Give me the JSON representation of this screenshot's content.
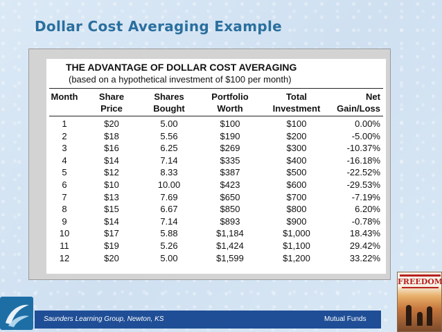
{
  "slide": {
    "title": "Dollar Cost Averaging Example"
  },
  "table": {
    "heading": "THE ADVANTAGE OF DOLLAR COST AVERAGING",
    "subheading": "(based on a hypothetical investment of $100 per month)",
    "columns": [
      [
        "Month",
        ""
      ],
      [
        "Share",
        "Price"
      ],
      [
        "Shares",
        "Bought"
      ],
      [
        "Portfolio",
        "Worth"
      ],
      [
        "Total",
        "Investment"
      ],
      [
        "Net",
        "Gain/Loss"
      ]
    ],
    "rows": [
      [
        "1",
        "$20",
        "5.00",
        "$100",
        "$100",
        "0.00%"
      ],
      [
        "2",
        "$18",
        "5.56",
        "$190",
        "$200",
        "-5.00%"
      ],
      [
        "3",
        "$16",
        "6.25",
        "$269",
        "$300",
        "-10.37%"
      ],
      [
        "4",
        "$14",
        "7.14",
        "$335",
        "$400",
        "-16.18%"
      ],
      [
        "5",
        "$12",
        "8.33",
        "$387",
        "$500",
        "-22.52%"
      ],
      [
        "6",
        "$10",
        "10.00",
        "$423",
        "$600",
        "-29.53%"
      ],
      [
        "7",
        "$13",
        "7.69",
        "$650",
        "$700",
        "-7.19%"
      ],
      [
        "8",
        "$15",
        "6.67",
        "$850",
        "$800",
        "6.20%"
      ],
      [
        "9",
        "$14",
        "7.14",
        "$893",
        "$900",
        "-0.78%"
      ],
      [
        "10",
        "$17",
        "5.88",
        "$1,184",
        "$1,000",
        "18.43%"
      ],
      [
        "11",
        "$19",
        "5.26",
        "$1,424",
        "$1,100",
        "29.42%"
      ],
      [
        "12",
        "$20",
        "5.00",
        "$1,599",
        "$1,200",
        "33.22%"
      ]
    ]
  },
  "footer": {
    "left": "Saunders Learning Group, Newton, KS",
    "right": "Mutual Funds"
  },
  "book": {
    "title": "FREEDOM"
  },
  "icons": {
    "logo": "swoosh-logo-icon"
  },
  "colors": {
    "title": "#2a6f9e",
    "footer_band": "#1f4e96",
    "background": "#d6e6f4"
  }
}
